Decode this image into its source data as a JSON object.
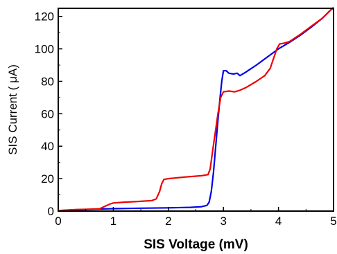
{
  "chart_data": {
    "type": "line",
    "xlabel": "SIS Voltage (mV)",
    "ylabel": "SIS Current  ( μA)",
    "xlim": [
      0,
      5
    ],
    "ylim": [
      0,
      125
    ],
    "x_ticks": [
      0,
      1,
      2,
      3,
      4,
      5
    ],
    "y_ticks": [
      0,
      20,
      40,
      60,
      80,
      100,
      120
    ],
    "grid": false,
    "legend": "none",
    "series": [
      {
        "color": "#0000ee",
        "points": [
          [
            0.0,
            0.3
          ],
          [
            0.3,
            0.8
          ],
          [
            0.7,
            1.2
          ],
          [
            1.0,
            1.5
          ],
          [
            1.5,
            1.8
          ],
          [
            2.0,
            2.0
          ],
          [
            2.4,
            2.3
          ],
          [
            2.6,
            2.7
          ],
          [
            2.7,
            3.5
          ],
          [
            2.74,
            5.5
          ],
          [
            2.78,
            12
          ],
          [
            2.82,
            24
          ],
          [
            2.86,
            40
          ],
          [
            2.9,
            56
          ],
          [
            2.94,
            70
          ],
          [
            2.97,
            80
          ],
          [
            3.0,
            86.5
          ],
          [
            3.05,
            86.5
          ],
          [
            3.1,
            85
          ],
          [
            3.18,
            84.5
          ],
          [
            3.25,
            85
          ],
          [
            3.3,
            83.5
          ],
          [
            3.4,
            85.5
          ],
          [
            3.6,
            90
          ],
          [
            3.8,
            95
          ],
          [
            4.0,
            100
          ],
          [
            4.2,
            104
          ],
          [
            4.4,
            108.5
          ],
          [
            4.6,
            113.5
          ],
          [
            4.8,
            119
          ],
          [
            4.95,
            124
          ],
          [
            5.0,
            125.5
          ]
        ]
      },
      {
        "color": "#ee0000",
        "points": [
          [
            0.0,
            0.3
          ],
          [
            0.3,
            0.9
          ],
          [
            0.6,
            1.2
          ],
          [
            0.75,
            1.4
          ],
          [
            0.85,
            3
          ],
          [
            0.95,
            4.5
          ],
          [
            1.0,
            5
          ],
          [
            1.2,
            5.5
          ],
          [
            1.5,
            6
          ],
          [
            1.7,
            6.5
          ],
          [
            1.78,
            7.5
          ],
          [
            1.84,
            12
          ],
          [
            1.88,
            17
          ],
          [
            1.92,
            19.5
          ],
          [
            2.0,
            20
          ],
          [
            2.3,
            21
          ],
          [
            2.6,
            21.8
          ],
          [
            2.72,
            22.5
          ],
          [
            2.76,
            26
          ],
          [
            2.8,
            36
          ],
          [
            2.85,
            48
          ],
          [
            2.9,
            60
          ],
          [
            2.95,
            70
          ],
          [
            3.0,
            73.5
          ],
          [
            3.1,
            74
          ],
          [
            3.2,
            73.5
          ],
          [
            3.3,
            74.5
          ],
          [
            3.4,
            76
          ],
          [
            3.6,
            80
          ],
          [
            3.75,
            83.5
          ],
          [
            3.85,
            88
          ],
          [
            3.92,
            95
          ],
          [
            3.97,
            100
          ],
          [
            4.02,
            103
          ],
          [
            4.1,
            103.5
          ],
          [
            4.2,
            104.5
          ],
          [
            4.4,
            109
          ],
          [
            4.6,
            114
          ],
          [
            4.8,
            119
          ],
          [
            4.95,
            124
          ],
          [
            5.0,
            125
          ]
        ]
      }
    ]
  }
}
